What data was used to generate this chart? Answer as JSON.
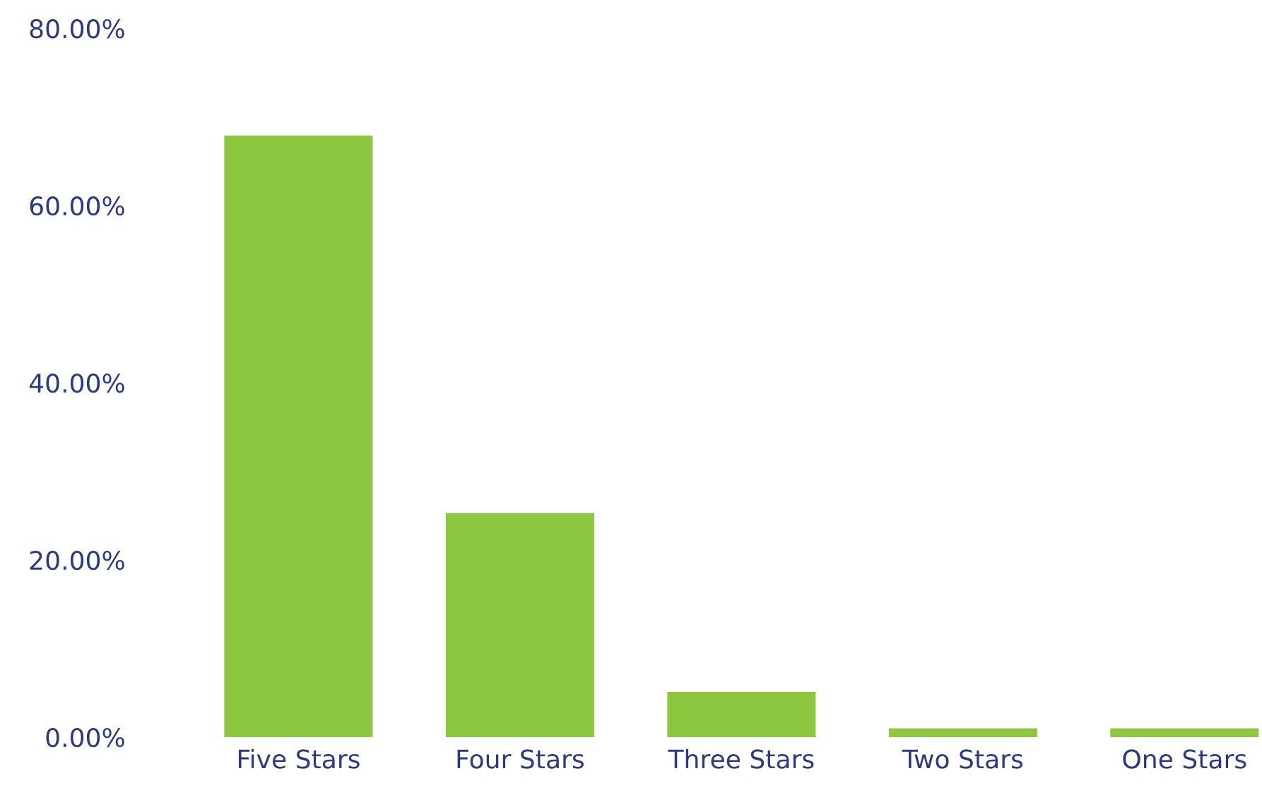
{
  "chart_data": {
    "type": "bar",
    "categories": [
      "Five Stars",
      "Four Stars",
      "Three Stars",
      "Two Stars",
      "One Stars"
    ],
    "values": [
      67.9,
      25.3,
      5.1,
      1.0,
      1.0
    ],
    "color": "#8dc63f",
    "ylim": [
      0,
      80
    ],
    "yticks": [
      {
        "value": 0,
        "label": "0.00%"
      },
      {
        "value": 20,
        "label": "20.00%"
      },
      {
        "value": 40,
        "label": "40.00%"
      },
      {
        "value": 60,
        "label": "60.00%"
      },
      {
        "value": 80,
        "label": "80.00%"
      }
    ],
    "grid": false,
    "legend": false
  }
}
